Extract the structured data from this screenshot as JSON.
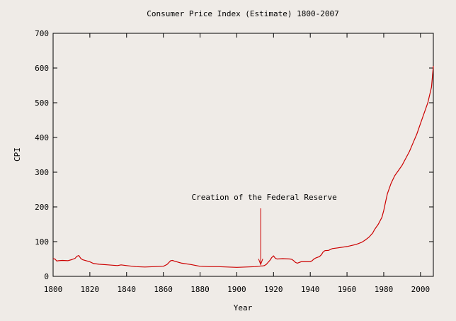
{
  "chart_data": {
    "type": "line",
    "title": "Consumer Price Index (Estimate) 1800-2007",
    "xlabel": "Year",
    "ylabel": "CPI",
    "xlim": [
      1800,
      2007
    ],
    "ylim": [
      0,
      700
    ],
    "xticks": [
      1800,
      1820,
      1840,
      1860,
      1880,
      1900,
      1920,
      1940,
      1960,
      1980,
      2000
    ],
    "yticks": [
      0,
      100,
      200,
      300,
      400,
      500,
      600,
      700
    ],
    "grid": false,
    "line_color": "#cc0000",
    "annotation": {
      "text": "Creation of the Federal Reserve",
      "x": 1913,
      "y": 30,
      "label_y": 200
    },
    "series": [
      {
        "x": [
          1800,
          1801,
          1802,
          1803,
          1805,
          1808,
          1810,
          1812,
          1813,
          1814,
          1815,
          1816,
          1818,
          1820,
          1822,
          1825,
          1830,
          1835,
          1837,
          1840,
          1845,
          1850,
          1855,
          1860,
          1862,
          1864,
          1865,
          1866,
          1870,
          1875,
          1880,
          1885,
          1890,
          1895,
          1900,
          1905,
          1910,
          1912,
          1913,
          1914,
          1915,
          1916,
          1917,
          1918,
          1919,
          1920,
          1921,
          1922,
          1925,
          1929,
          1930,
          1931,
          1932,
          1933,
          1935,
          1940,
          1941,
          1942,
          1943,
          1945,
          1946,
          1947,
          1948,
          1950,
          1952,
          1955,
          1960,
          1965,
          1968,
          1970,
          1972,
          1974,
          1975,
          1977,
          1979,
          1980,
          1981,
          1982,
          1984,
          1986,
          1988,
          1990,
          1992,
          1994,
          1996,
          1998,
          2000,
          2002,
          2004,
          2006,
          2007
        ],
        "y": [
          51,
          50,
          44,
          45,
          46,
          45,
          48,
          52,
          58,
          60,
          52,
          48,
          45,
          42,
          37,
          35,
          33,
          31,
          33,
          31,
          28,
          27,
          28,
          29,
          34,
          45,
          46,
          44,
          38,
          34,
          29,
          28,
          28,
          27,
          26,
          27,
          28,
          29,
          30,
          30,
          31,
          34,
          40,
          46,
          54,
          59,
          52,
          50,
          51,
          50,
          49,
          45,
          40,
          38,
          42,
          42,
          45,
          50,
          53,
          57,
          62,
          70,
          74,
          75,
          80,
          82,
          86,
          92,
          98,
          105,
          113,
          125,
          135,
          150,
          170,
          190,
          215,
          238,
          268,
          290,
          305,
          320,
          340,
          360,
          385,
          410,
          440,
          470,
          500,
          545,
          606
        ]
      }
    ]
  }
}
